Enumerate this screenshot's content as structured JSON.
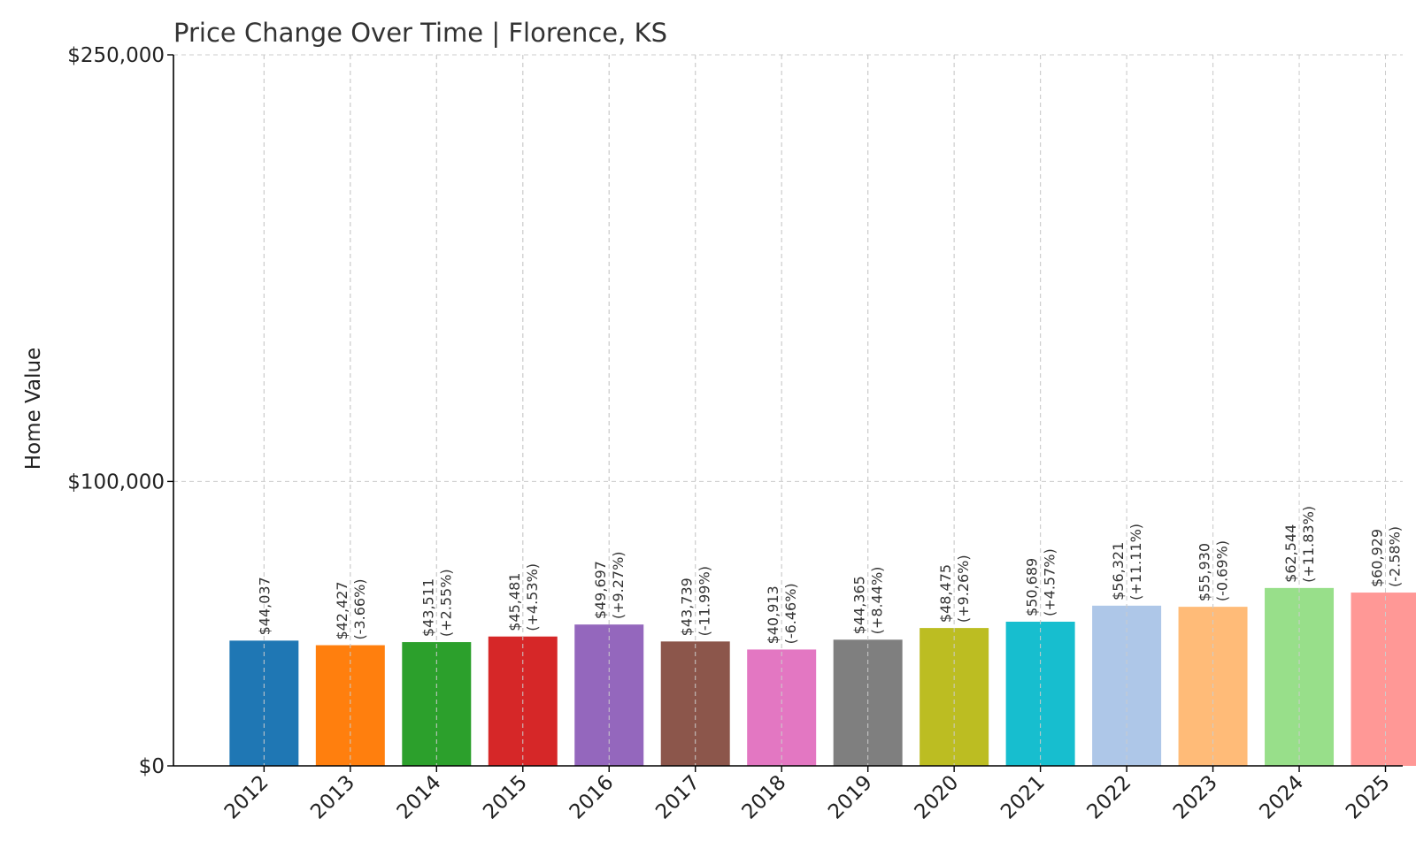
{
  "chart_data": {
    "type": "bar",
    "title": "Price Change Over Time | Florence, KS",
    "xlabel": "",
    "ylabel": "Home Value",
    "ylim": [
      0,
      250000
    ],
    "yticks": [
      0,
      100000,
      250000
    ],
    "ytick_labels": [
      "$0",
      "$100,000",
      "$250,000"
    ],
    "grid": true,
    "categories": [
      "2012",
      "2013",
      "2014",
      "2015",
      "2016",
      "2017",
      "2018",
      "2019",
      "2020",
      "2021",
      "2022",
      "2023",
      "2024",
      "2025"
    ],
    "values": [
      44037,
      42427,
      43511,
      45481,
      49697,
      43739,
      40913,
      44365,
      48475,
      50689,
      56321,
      55930,
      62544,
      60929
    ],
    "value_labels": [
      "$44,037",
      "$42,427",
      "$43,511",
      "$45,481",
      "$49,697",
      "$43,739",
      "$40,913",
      "$44,365",
      "$48,475",
      "$50,689",
      "$56,321",
      "$55,930",
      "$62,544",
      "$60,929"
    ],
    "change_labels": [
      "",
      "(-3.66%)",
      "(+2.55%)",
      "(+4.53%)",
      "(+9.27%)",
      "(-11.99%)",
      "(-6.46%)",
      "(+8.44%)",
      "(+9.26%)",
      "(+4.57%)",
      "(+11.11%)",
      "(-0.69%)",
      "(+11.83%)",
      "(-2.58%)"
    ],
    "colors": [
      "#1f77b4",
      "#ff7f0e",
      "#2ca02c",
      "#d62728",
      "#9467bd",
      "#8c564b",
      "#e377c2",
      "#7f7f7f",
      "#bcbd22",
      "#17becf",
      "#aec7e8",
      "#ffbb78",
      "#98df8a",
      "#ff9896"
    ]
  }
}
